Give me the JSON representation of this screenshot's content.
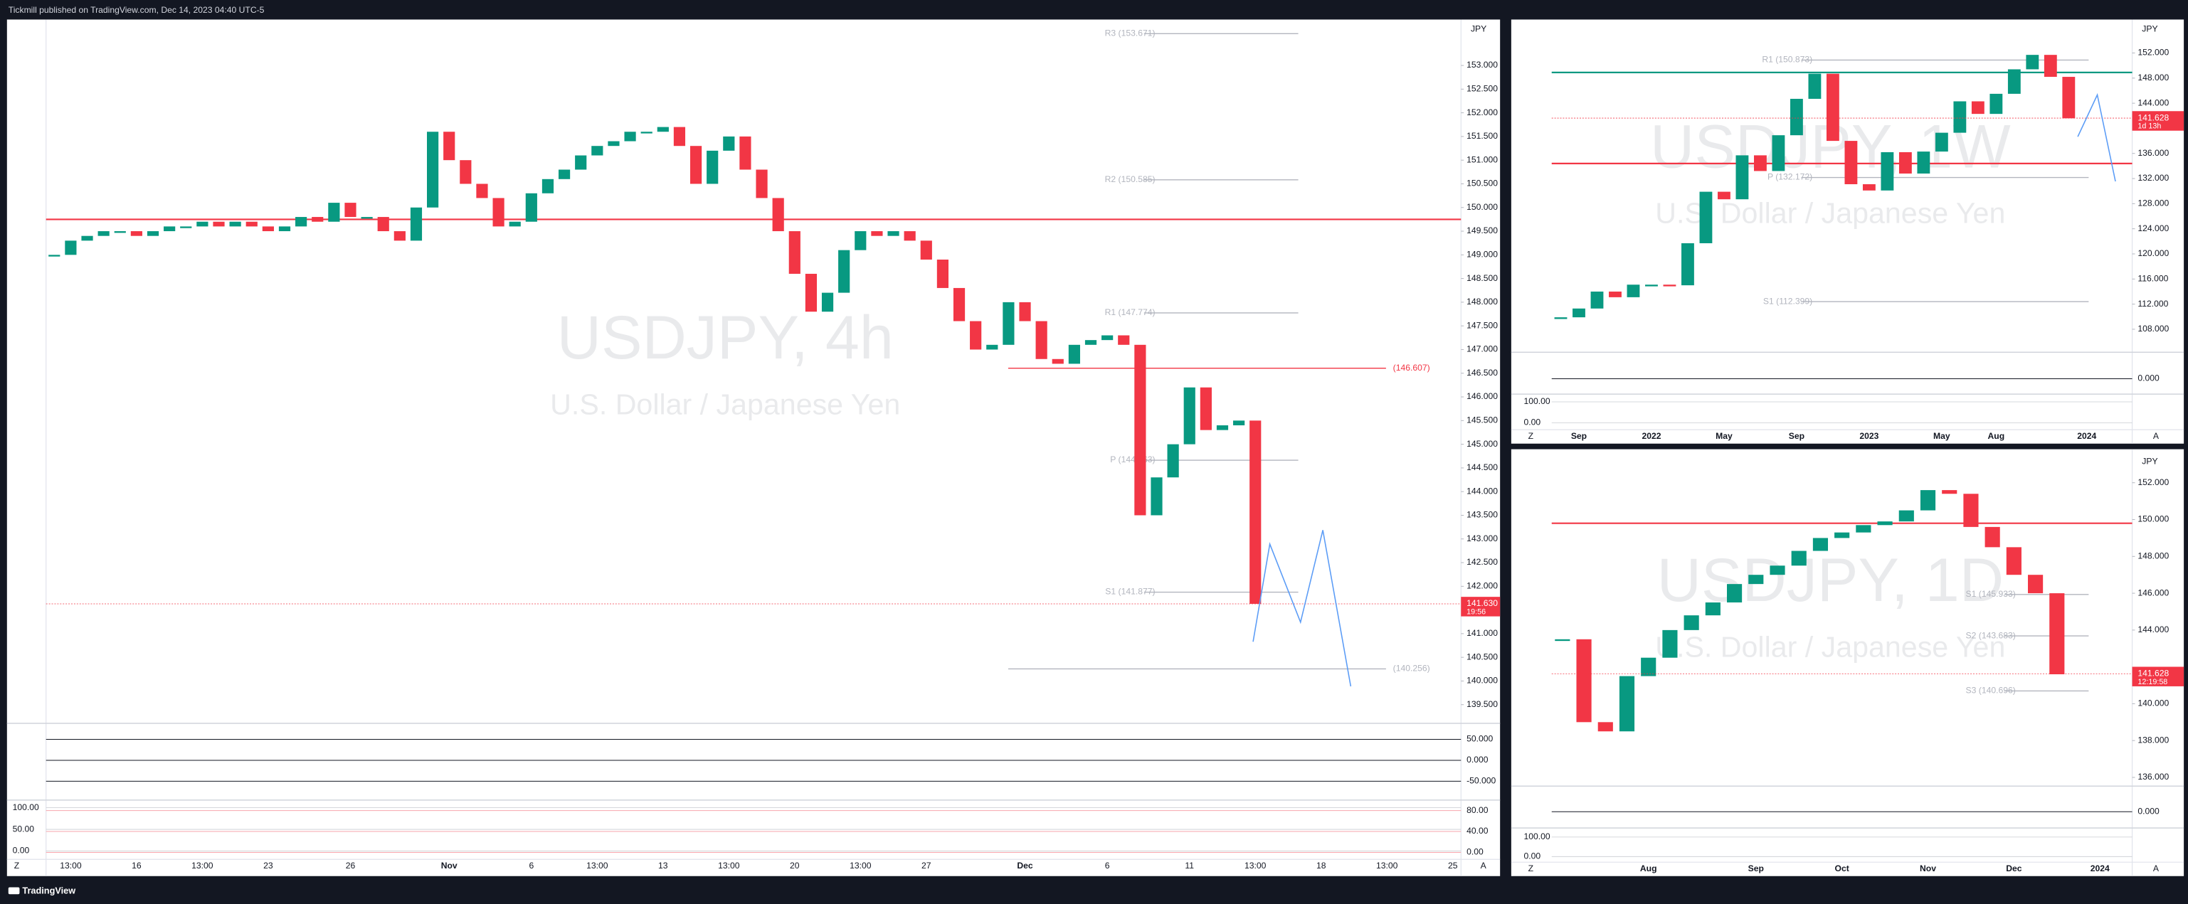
{
  "header": {
    "text": "Tickmill published on TradingView.com, Dec 14, 2023 04:40 UTC-5"
  },
  "footer": {
    "brand": "TradingView"
  },
  "chart_data": [
    {
      "type": "candles",
      "title": "USDJPY, 4h",
      "subtitle": "U.S. Dollar / Japanese Yen",
      "currency": "JPY",
      "up_color": "#089981",
      "down_color": "#f23645",
      "categories": [
        null,
        "13:00",
        null,
        null,
        null,
        "16",
        null,
        null,
        null,
        "13:00",
        null,
        null,
        null,
        "23",
        null,
        null,
        null,
        null,
        "26",
        null,
        null,
        null,
        null,
        null,
        "Nov",
        null,
        null,
        null,
        null,
        "6",
        null,
        null,
        null,
        "13:00",
        null,
        null,
        null,
        "13",
        null,
        null,
        null,
        "13:00",
        null,
        null,
        null,
        "20",
        null,
        null,
        null,
        "13:00",
        null,
        null,
        null,
        "27",
        null,
        null,
        null,
        null,
        null,
        "Dec",
        null,
        null,
        null,
        null,
        "6",
        null,
        null,
        null,
        null,
        "11",
        null,
        null,
        null,
        "13:00",
        null,
        null,
        null,
        "18",
        null,
        null,
        null,
        "13:00",
        null,
        null,
        null,
        "25"
      ],
      "values": [
        149.0,
        149.3,
        149.4,
        149.5,
        149.5,
        149.4,
        149.5,
        149.6,
        149.6,
        149.7,
        149.6,
        149.7,
        149.6,
        149.5,
        149.6,
        149.8,
        149.7,
        150.1,
        149.8,
        149.8,
        149.5,
        149.3,
        150.0,
        151.6,
        151.0,
        150.5,
        150.2,
        149.6,
        149.7,
        150.3,
        150.6,
        150.8,
        151.1,
        151.3,
        151.4,
        151.6,
        151.6,
        151.7,
        151.3,
        150.5,
        151.2,
        151.5,
        150.8,
        150.2,
        149.5,
        148.6,
        147.8,
        148.2,
        149.1,
        149.5,
        149.4,
        149.5,
        149.3,
        148.9,
        148.3,
        147.6,
        147.0,
        147.1,
        148.0,
        147.6,
        146.8,
        146.7,
        147.1,
        147.2,
        147.3,
        147.1,
        143.5,
        144.3,
        145.0,
        146.2,
        145.3,
        145.4,
        145.5,
        141.63,
        null,
        null,
        null,
        null,
        null,
        null,
        null,
        null,
        null,
        null,
        null,
        null
      ],
      "ylim": [
        139.15,
        153.97
      ],
      "yticks": [
        {
          "value": 153,
          "label": "153.000"
        },
        {
          "value": 152.5,
          "label": "152.500"
        },
        {
          "value": 152,
          "label": "152.000"
        },
        {
          "value": 151.5,
          "label": "151.500"
        },
        {
          "value": 151,
          "label": "151.000"
        },
        {
          "value": 150.5,
          "label": "150.500"
        },
        {
          "value": 150,
          "label": "150.000"
        },
        {
          "value": 149.5,
          "label": "149.500"
        },
        {
          "value": 149,
          "label": "149.000"
        },
        {
          "value": 148.5,
          "label": "148.500"
        },
        {
          "value": 148,
          "label": "148.000"
        },
        {
          "value": 147.5,
          "label": "147.500"
        },
        {
          "value": 147,
          "label": "147.000"
        },
        {
          "value": 146.5,
          "label": "146.500"
        },
        {
          "value": 146,
          "label": "146.000"
        },
        {
          "value": 145.5,
          "label": "145.500"
        },
        {
          "value": 145,
          "label": "145.000"
        },
        {
          "value": 144.5,
          "label": "144.500"
        },
        {
          "value": 144,
          "label": "144.000"
        },
        {
          "value": 143.5,
          "label": "143.500"
        },
        {
          "value": 143,
          "label": "143.000"
        },
        {
          "value": 142.5,
          "label": "142.500"
        },
        {
          "value": 142,
          "label": "142.000"
        },
        {
          "value": 141.5,
          "label": "141.500"
        },
        {
          "value": 141,
          "label": "141.000"
        },
        {
          "value": 140.5,
          "label": "140.500"
        },
        {
          "value": 140,
          "label": "140.000"
        },
        {
          "value": 139.5,
          "label": "139.500"
        }
      ],
      "hlines": [
        {
          "value": 149.75,
          "color": "#f23645"
        }
      ],
      "levels": [
        {
          "label": "R3 (153.671)",
          "value": 153.671,
          "color": "#b2b5be"
        },
        {
          "label": "R2 (150.585)",
          "value": 150.585,
          "color": "#b2b5be"
        },
        {
          "label": "R1 (147.774)",
          "value": 147.774,
          "color": "#b2b5be"
        },
        {
          "label": "P (144.663)",
          "value": 144.663,
          "color": "#b2b5be"
        },
        {
          "label": "S1 (141.877)",
          "value": 141.877,
          "color": "#b2b5be"
        },
        {
          "label": "(146.607)",
          "value": 146.607,
          "color": "#f23645",
          "extend": true
        },
        {
          "label": "(140.256)",
          "value": 140.256,
          "color": "#b2b5be",
          "extend": true
        }
      ],
      "price_tag": {
        "value": 141.63,
        "label": "141.630",
        "timer": "19:56"
      },
      "panes": [
        {
          "ylim": [
            -90,
            83.3
          ],
          "yticks": [
            {
              "value": 50,
              "label": "50.000"
            },
            {
              "value": 0,
              "label": "0.000"
            },
            {
              "value": -50,
              "label": "-50.000"
            }
          ]
        },
        {
          "ylim": [
            -13.3,
            96
          ],
          "yticks": [
            {
              "value": 80,
              "label": "80.00"
            },
            {
              "value": 40,
              "label": "40.00"
            },
            {
              "value": 0,
              "label": "0.00"
            }
          ],
          "y2lim": [
            -19.4,
            112.9
          ],
          "y2ticks": [
            {
              "value": 100,
              "label": "100.00"
            },
            {
              "value": 50,
              "label": "50.00"
            },
            {
              "value": 0,
              "label": "0.00"
            }
          ]
        }
      ],
      "scale_buttons": [
        "Z",
        "A"
      ]
    },
    {
      "type": "candles",
      "title": "USDJPY, 1W",
      "subtitle": "U.S. Dollar / Japanese Yen",
      "currency": "JPY",
      "up_color": "#089981",
      "down_color": "#f23645",
      "categories": [
        null,
        "Sep",
        null,
        null,
        null,
        "2022",
        null,
        null,
        null,
        "May",
        null,
        null,
        null,
        "Sep",
        null,
        null,
        null,
        "2023",
        null,
        null,
        null,
        "May",
        null,
        null,
        "Aug",
        null,
        null,
        null,
        null,
        "2024",
        null,
        null
      ],
      "values": [
        109.9,
        111.3,
        114.0,
        113.1,
        115.1,
        115.1,
        115.0,
        121.7,
        129.9,
        128.7,
        135.7,
        133.2,
        138.9,
        144.7,
        148.7,
        138.0,
        131.1,
        130.1,
        136.2,
        132.8,
        136.3,
        139.3,
        144.3,
        142.3,
        145.5,
        149.4,
        151.7,
        148.2,
        141.6,
        null,
        null,
        null
      ],
      "ylim": [
        104.89,
        157.33
      ],
      "yticks": [
        {
          "value": 152,
          "label": "152.000"
        },
        {
          "value": 148,
          "label": "148.000"
        },
        {
          "value": 144,
          "label": "144.000"
        },
        {
          "value": 140,
          "label": "140.000"
        },
        {
          "value": 136,
          "label": "136.000"
        },
        {
          "value": 132,
          "label": "132.000"
        },
        {
          "value": 128,
          "label": "128.000"
        },
        {
          "value": 124,
          "label": "124.000"
        },
        {
          "value": 120,
          "label": "120.000"
        },
        {
          "value": 116,
          "label": "116.000"
        },
        {
          "value": 112,
          "label": "112.000"
        },
        {
          "value": 108,
          "label": "108.000"
        }
      ],
      "hlines": [
        {
          "value": 134.4,
          "color": "#f23645"
        },
        {
          "value": 148.9,
          "color": "#089981"
        }
      ],
      "levels": [
        {
          "label": "R1 (150.873)",
          "value": 150.873,
          "color": "#b2b5be"
        },
        {
          "label": "P (132.172)",
          "value": 132.172,
          "color": "#b2b5be"
        },
        {
          "label": "S1 (112.399)",
          "value": 112.399,
          "color": "#b2b5be"
        }
      ],
      "price_tag": {
        "value": 141.628,
        "label": "141.628",
        "timer": "1d 13h"
      },
      "panes": [
        {
          "ylim": [
            -60,
            100
          ],
          "yticks": [
            {
              "value": 0,
              "label": "0.000"
            }
          ]
        },
        {
          "y2lim": [
            -33,
            127
          ],
          "y2ticks": [
            {
              "value": 100,
              "label": "100.00"
            },
            {
              "value": 0,
              "label": "0.00"
            }
          ]
        }
      ],
      "scale_buttons": [
        "Z",
        "A"
      ]
    },
    {
      "type": "candles",
      "title": "USDJPY, 1D",
      "subtitle": "U.S. Dollar / Japanese Yen",
      "currency": "JPY",
      "up_color": "#089981",
      "down_color": "#f23645",
      "categories": [
        null,
        null,
        null,
        null,
        "Aug",
        null,
        null,
        null,
        null,
        "Sep",
        null,
        null,
        null,
        "Oct",
        null,
        null,
        null,
        "Nov",
        null,
        null,
        null,
        "Dec",
        null,
        null,
        null,
        "2024",
        null
      ],
      "values": [
        143.5,
        139.0,
        138.5,
        141.5,
        142.5,
        144.0,
        144.8,
        145.5,
        146.5,
        147.0,
        147.5,
        148.3,
        149.0,
        149.3,
        149.7,
        149.9,
        150.5,
        151.6,
        151.4,
        149.6,
        148.5,
        147.0,
        146.0,
        141.6,
        null,
        null,
        null
      ],
      "ylim": [
        135.64,
        153.67
      ],
      "yticks": [
        {
          "value": 152,
          "label": "152.000"
        },
        {
          "value": 150,
          "label": "150.000"
        },
        {
          "value": 148,
          "label": "148.000"
        },
        {
          "value": 146,
          "label": "146.000"
        },
        {
          "value": 144,
          "label": "144.000"
        },
        {
          "value": 140,
          "label": "140.000"
        },
        {
          "value": 138,
          "label": "138.000"
        },
        {
          "value": 136,
          "label": "136.000"
        }
      ],
      "hlines": [
        {
          "value": 149.8,
          "color": "#f23645"
        }
      ],
      "levels": [
        {
          "label": "S1 (145.933)",
          "value": 145.933,
          "color": "#b2b5be"
        },
        {
          "label": "S2 (143.683)",
          "value": 143.683,
          "color": "#b2b5be"
        },
        {
          "label": "S3 (140.696)",
          "value": 140.696,
          "color": "#b2b5be"
        }
      ],
      "price_tag": {
        "value": 141.628,
        "label": "141.628",
        "timer": "12:19:58"
      },
      "panes": [
        {
          "ylim": [
            -60,
            100
          ],
          "yticks": [
            {
              "value": 0,
              "label": "0.000"
            }
          ]
        },
        {
          "y2lim": [
            -28.6,
            135.7
          ],
          "y2ticks": [
            {
              "value": 100,
              "label": "100.00"
            },
            {
              "value": 0,
              "label": "0.00"
            }
          ]
        }
      ],
      "scale_buttons": [
        "Z",
        "A"
      ]
    }
  ]
}
